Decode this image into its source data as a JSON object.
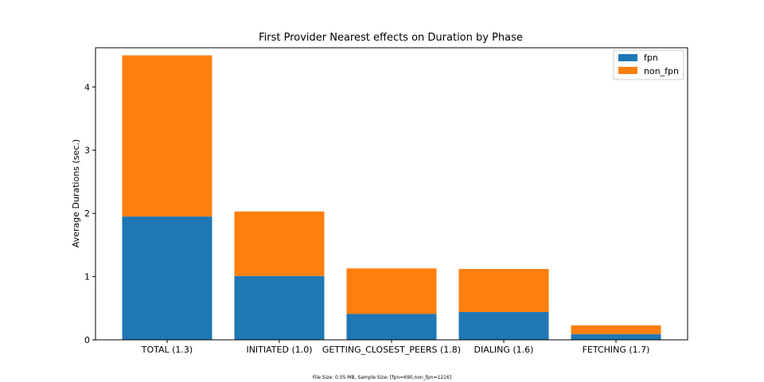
{
  "chart_data": {
    "type": "bar",
    "stacked": true,
    "title": "First Provider Nearest effects on Duration by Phase",
    "xlabel": "",
    "ylabel": "Average Durations (sec.)",
    "ylim": [
      0,
      4.62
    ],
    "yticks": [
      0,
      1,
      2,
      3,
      4
    ],
    "grid": false,
    "legend_position": "top-right",
    "categories": [
      "TOTAL (1.3)",
      "INITIATED (1.0)",
      "GETTING_CLOSEST_PEERS (1.8)",
      "DIALING (1.6)",
      "FETCHING (1.7)"
    ],
    "series": [
      {
        "name": "fpn",
        "color": "#1f77b4",
        "values": [
          1.95,
          1.01,
          0.41,
          0.44,
          0.09
        ]
      },
      {
        "name": "non_fpn",
        "color": "#ff7f0e",
        "values": [
          2.55,
          1.02,
          0.72,
          0.68,
          0.14
        ]
      }
    ],
    "footnote": "File Size: 0.05 MB, Sample Size: [fpn=690,non_fpn=1216]"
  }
}
